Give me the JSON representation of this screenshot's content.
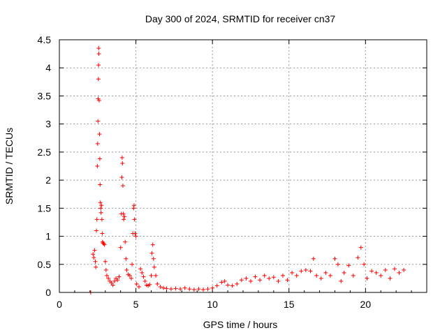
{
  "chart_data": {
    "type": "scatter",
    "title": "Day 300 of 2024, SRMTID for receiver cn37",
    "xlabel": "GPS time / hours",
    "ylabel": "SRMTID / TECUs",
    "xlim": [
      0,
      24
    ],
    "ylim": [
      0,
      4.5
    ],
    "x_ticks": [
      0,
      5,
      10,
      15,
      20
    ],
    "x_tick_labels": [
      "0",
      "5",
      "10",
      "15",
      "20"
    ],
    "y_ticks": [
      0,
      0.5,
      1,
      1.5,
      2,
      2.5,
      3,
      3.5,
      4,
      4.5
    ],
    "y_tick_labels": [
      "0",
      "0.5",
      "1",
      "1.5",
      "2",
      "2.5",
      "3",
      "3.5",
      "4",
      "4.5"
    ],
    "grid": true,
    "marker": "+",
    "color": "#ff0000",
    "series": [
      {
        "name": "SRMTID",
        "points": [
          [
            2.05,
            0.0
          ],
          [
            2.2,
            0.68
          ],
          [
            2.25,
            0.62
          ],
          [
            2.3,
            0.75
          ],
          [
            2.35,
            0.55
          ],
          [
            2.38,
            0.45
          ],
          [
            2.42,
            1.1
          ],
          [
            2.45,
            1.3
          ],
          [
            2.48,
            2.25
          ],
          [
            2.5,
            2.65
          ],
          [
            2.52,
            3.05
          ],
          [
            2.53,
            3.45
          ],
          [
            2.55,
            3.8
          ],
          [
            2.56,
            4.05
          ],
          [
            2.57,
            4.35
          ],
          [
            2.58,
            4.25
          ],
          [
            2.6,
            3.42
          ],
          [
            2.62,
            2.82
          ],
          [
            2.64,
            2.38
          ],
          [
            2.66,
            1.92
          ],
          [
            2.68,
            1.6
          ],
          [
            2.7,
            1.5
          ],
          [
            2.72,
            1.42
          ],
          [
            2.75,
            1.55
          ],
          [
            2.78,
            1.3
          ],
          [
            2.8,
            1.05
          ],
          [
            2.82,
            0.9
          ],
          [
            2.85,
            0.88
          ],
          [
            2.9,
            0.87
          ],
          [
            2.95,
            0.85
          ],
          [
            3.0,
            0.55
          ],
          [
            3.05,
            0.4
          ],
          [
            3.1,
            0.3
          ],
          [
            3.2,
            0.25
          ],
          [
            3.3,
            0.2
          ],
          [
            3.4,
            0.17
          ],
          [
            3.5,
            0.13
          ],
          [
            3.6,
            0.2
          ],
          [
            3.7,
            0.25
          ],
          [
            3.8,
            0.22
          ],
          [
            3.9,
            0.28
          ],
          [
            4.0,
            0.8
          ],
          [
            4.05,
            1.4
          ],
          [
            4.08,
            2.05
          ],
          [
            4.1,
            2.4
          ],
          [
            4.12,
            2.3
          ],
          [
            4.15,
            1.9
          ],
          [
            4.18,
            1.4
          ],
          [
            4.2,
            1.3
          ],
          [
            4.25,
            1.35
          ],
          [
            4.3,
            0.9
          ],
          [
            4.35,
            0.6
          ],
          [
            4.4,
            0.4
          ],
          [
            4.5,
            0.32
          ],
          [
            4.6,
            0.3
          ],
          [
            4.7,
            0.25
          ],
          [
            4.75,
            0.5
          ],
          [
            4.8,
            1.05
          ],
          [
            4.85,
            1.5
          ],
          [
            4.88,
            1.55
          ],
          [
            4.9,
            1.3
          ],
          [
            4.95,
            1.05
          ],
          [
            5.0,
            1.0
          ],
          [
            5.05,
            0.15
          ],
          [
            5.2,
            0.1
          ],
          [
            5.3,
            0.42
          ],
          [
            5.4,
            0.35
          ],
          [
            5.5,
            0.28
          ],
          [
            5.6,
            0.2
          ],
          [
            5.7,
            0.13
          ],
          [
            5.8,
            0.12
          ],
          [
            5.9,
            0.14
          ],
          [
            6.0,
            0.3
          ],
          [
            6.05,
            0.7
          ],
          [
            6.1,
            0.85
          ],
          [
            6.15,
            0.6
          ],
          [
            6.2,
            0.45
          ],
          [
            6.3,
            0.3
          ],
          [
            6.4,
            0.15
          ],
          [
            6.6,
            0.1
          ],
          [
            6.8,
            0.08
          ],
          [
            7.0,
            0.07
          ],
          [
            7.3,
            0.06
          ],
          [
            7.6,
            0.07
          ],
          [
            7.9,
            0.06
          ],
          [
            8.2,
            0.08
          ],
          [
            8.5,
            0.06
          ],
          [
            8.8,
            0.05
          ],
          [
            9.1,
            0.06
          ],
          [
            9.4,
            0.05
          ],
          [
            9.7,
            0.06
          ],
          [
            10.0,
            0.08
          ],
          [
            10.3,
            0.12
          ],
          [
            10.6,
            0.18
          ],
          [
            10.8,
            0.2
          ],
          [
            11.0,
            0.13
          ],
          [
            11.3,
            0.12
          ],
          [
            11.6,
            0.15
          ],
          [
            11.9,
            0.22
          ],
          [
            12.2,
            0.25
          ],
          [
            12.5,
            0.2
          ],
          [
            12.8,
            0.28
          ],
          [
            13.1,
            0.22
          ],
          [
            13.4,
            0.3
          ],
          [
            13.7,
            0.25
          ],
          [
            14.0,
            0.27
          ],
          [
            14.3,
            0.2
          ],
          [
            14.6,
            0.3
          ],
          [
            14.9,
            0.22
          ],
          [
            15.2,
            0.35
          ],
          [
            15.5,
            0.3
          ],
          [
            15.8,
            0.38
          ],
          [
            16.1,
            0.4
          ],
          [
            16.4,
            0.38
          ],
          [
            16.6,
            0.6
          ],
          [
            16.8,
            0.3
          ],
          [
            17.1,
            0.25
          ],
          [
            17.4,
            0.35
          ],
          [
            17.7,
            0.3
          ],
          [
            18.0,
            0.6
          ],
          [
            18.2,
            0.5
          ],
          [
            18.4,
            0.2
          ],
          [
            18.6,
            0.35
          ],
          [
            18.9,
            0.48
          ],
          [
            19.2,
            0.3
          ],
          [
            19.5,
            0.62
          ],
          [
            19.7,
            0.8
          ],
          [
            19.9,
            0.5
          ],
          [
            20.1,
            0.25
          ],
          [
            20.4,
            0.38
          ],
          [
            20.7,
            0.35
          ],
          [
            21.0,
            0.3
          ],
          [
            21.3,
            0.4
          ],
          [
            21.6,
            0.25
          ],
          [
            21.9,
            0.42
          ],
          [
            22.2,
            0.35
          ],
          [
            22.5,
            0.4
          ]
        ]
      }
    ]
  }
}
